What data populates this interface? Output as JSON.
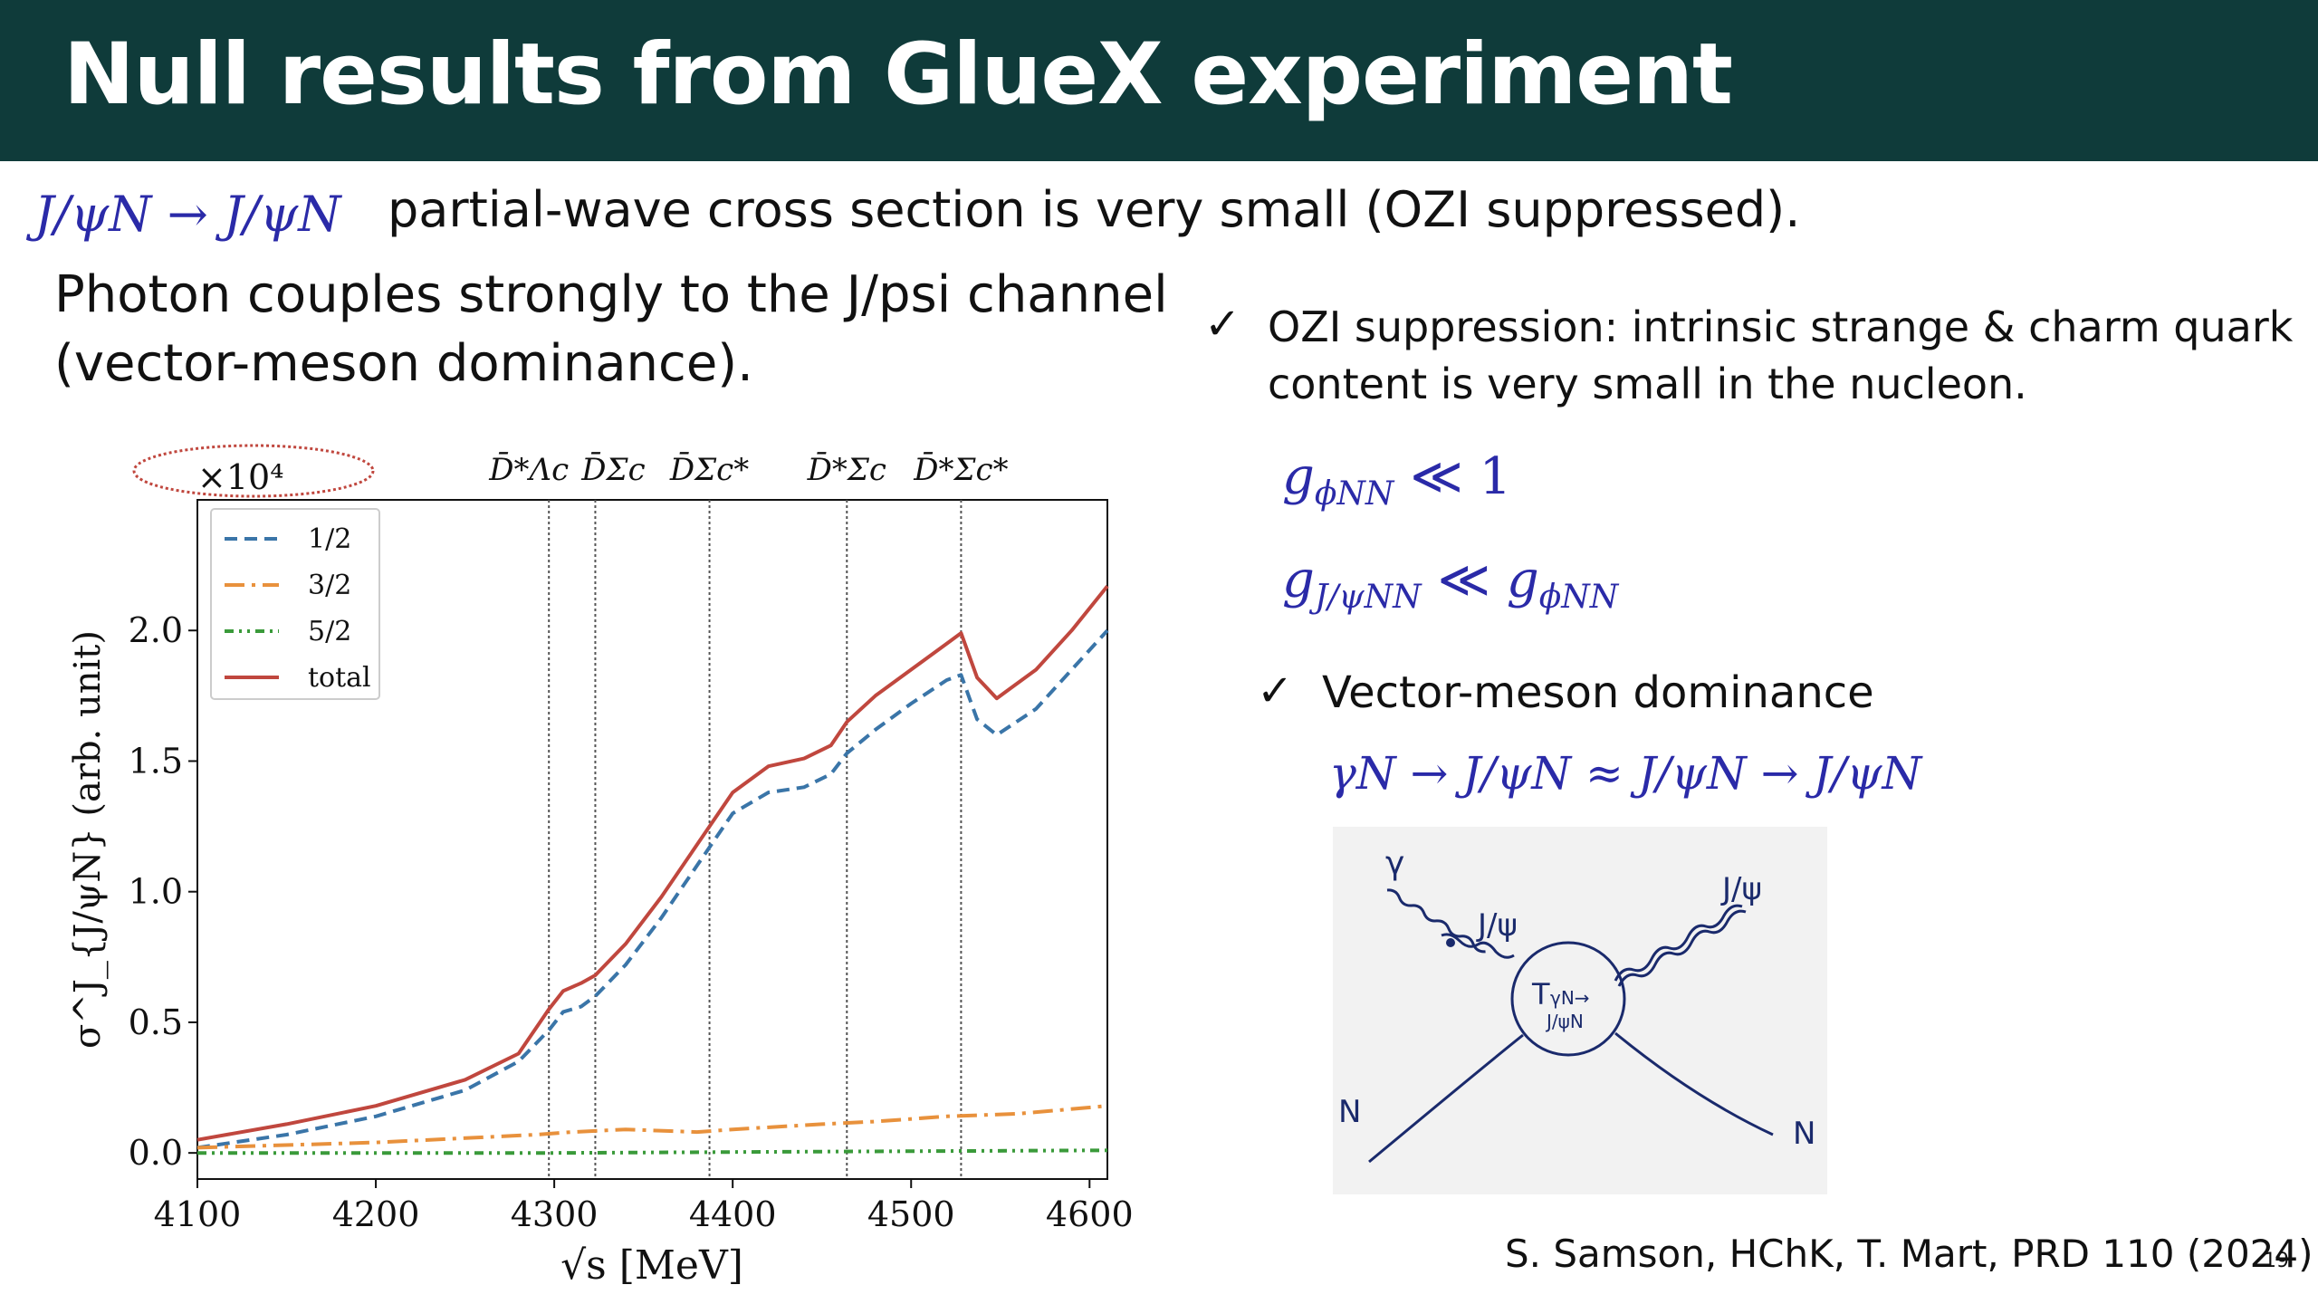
{
  "title": "Null results from GlueX experiment",
  "line1": {
    "math": "J/ψN → J/ψN",
    "text": "partial-wave cross section is very small (OZI suppressed)."
  },
  "photon_text": {
    "line1": "Photon couples strongly to the J/psi channel",
    "line2": "(vector-meson dominance)."
  },
  "ozi": {
    "line1": "OZI suppression: intrinsic strange & charm quark",
    "line2": "content is very small in the nucleon."
  },
  "equations": {
    "eq1": "g_{φNN} ≪ 1",
    "eq2": "g_{J/ψNN} ≪ g_{φNN}",
    "eq3": "γN → J/ψN ≈ J/ψN → J/ψN"
  },
  "vmd": "Vector-meson dominance",
  "check_mark": "✓",
  "citation": "S. Samson, HChK, T. Mart, PRD 110 (2024)",
  "page_number": "19",
  "diagram": {
    "photon": "γ",
    "jpsi_left": "J/ψ",
    "jpsi_right": "J/ψ",
    "blob_line1": "T",
    "blob_sub": "γN→",
    "blob_line2": "J/ψN",
    "nucleon_left": "N",
    "nucleon_right": "N"
  },
  "chart_data": {
    "type": "line",
    "xlabel": "√s [MeV]",
    "ylabel": "σ^J_{J/ψN} (arb. unit)",
    "scale_factor": "×10⁴",
    "xlim": [
      4100,
      4610
    ],
    "ylim": [
      -0.1,
      2.5
    ],
    "xticks": [
      "4100",
      "4200",
      "4300",
      "4400",
      "4500",
      "4600"
    ],
    "yticks": [
      "0.0",
      "0.5",
      "1.0",
      "1.5",
      "2.0"
    ],
    "legend_position": "top-left",
    "thresholds": [
      {
        "label": "D̄*Λc",
        "x": 4297
      },
      {
        "label": "D̄Σc",
        "x": 4323
      },
      {
        "label": "D̄Σc*",
        "x": 4387
      },
      {
        "label": "D̄*Σc",
        "x": 4464
      },
      {
        "label": "D̄*Σc*",
        "x": 4528
      }
    ],
    "series": [
      {
        "name": "1/2",
        "color": "#3a75a8",
        "style": "dashed",
        "points": [
          [
            4100,
            0.02
          ],
          [
            4150,
            0.07
          ],
          [
            4200,
            0.14
          ],
          [
            4250,
            0.24
          ],
          [
            4280,
            0.35
          ],
          [
            4297,
            0.47
          ],
          [
            4305,
            0.54
          ],
          [
            4315,
            0.56
          ],
          [
            4323,
            0.6
          ],
          [
            4340,
            0.72
          ],
          [
            4360,
            0.9
          ],
          [
            4380,
            1.1
          ],
          [
            4400,
            1.3
          ],
          [
            4420,
            1.38
          ],
          [
            4440,
            1.4
          ],
          [
            4455,
            1.45
          ],
          [
            4464,
            1.53
          ],
          [
            4480,
            1.62
          ],
          [
            4500,
            1.72
          ],
          [
            4520,
            1.81
          ],
          [
            4528,
            1.83
          ],
          [
            4537,
            1.66
          ],
          [
            4548,
            1.6
          ],
          [
            4570,
            1.7
          ],
          [
            4590,
            1.85
          ],
          [
            4610,
            2.0
          ]
        ]
      },
      {
        "name": "3/2",
        "color": "#e8913c",
        "style": "dashdot",
        "points": [
          [
            4100,
            0.02
          ],
          [
            4200,
            0.04
          ],
          [
            4290,
            0.07
          ],
          [
            4310,
            0.08
          ],
          [
            4340,
            0.09
          ],
          [
            4380,
            0.08
          ],
          [
            4400,
            0.09
          ],
          [
            4450,
            0.11
          ],
          [
            4480,
            0.12
          ],
          [
            4520,
            0.14
          ],
          [
            4560,
            0.15
          ],
          [
            4610,
            0.18
          ]
        ]
      },
      {
        "name": "5/2",
        "color": "#3a9a3a",
        "style": "dashdotdot",
        "points": [
          [
            4100,
            0.0
          ],
          [
            4300,
            0.0
          ],
          [
            4450,
            0.005
          ],
          [
            4610,
            0.01
          ]
        ]
      },
      {
        "name": "total",
        "color": "#c0473e",
        "style": "solid",
        "points": [
          [
            4100,
            0.05
          ],
          [
            4150,
            0.11
          ],
          [
            4200,
            0.18
          ],
          [
            4250,
            0.28
          ],
          [
            4280,
            0.38
          ],
          [
            4297,
            0.55
          ],
          [
            4305,
            0.62
          ],
          [
            4315,
            0.65
          ],
          [
            4323,
            0.68
          ],
          [
            4340,
            0.8
          ],
          [
            4360,
            0.98
          ],
          [
            4380,
            1.18
          ],
          [
            4400,
            1.38
          ],
          [
            4420,
            1.48
          ],
          [
            4440,
            1.51
          ],
          [
            4455,
            1.56
          ],
          [
            4464,
            1.65
          ],
          [
            4480,
            1.75
          ],
          [
            4500,
            1.85
          ],
          [
            4520,
            1.95
          ],
          [
            4528,
            1.99
          ],
          [
            4537,
            1.82
          ],
          [
            4548,
            1.74
          ],
          [
            4570,
            1.85
          ],
          [
            4590,
            2.0
          ],
          [
            4610,
            2.17
          ]
        ]
      }
    ]
  }
}
